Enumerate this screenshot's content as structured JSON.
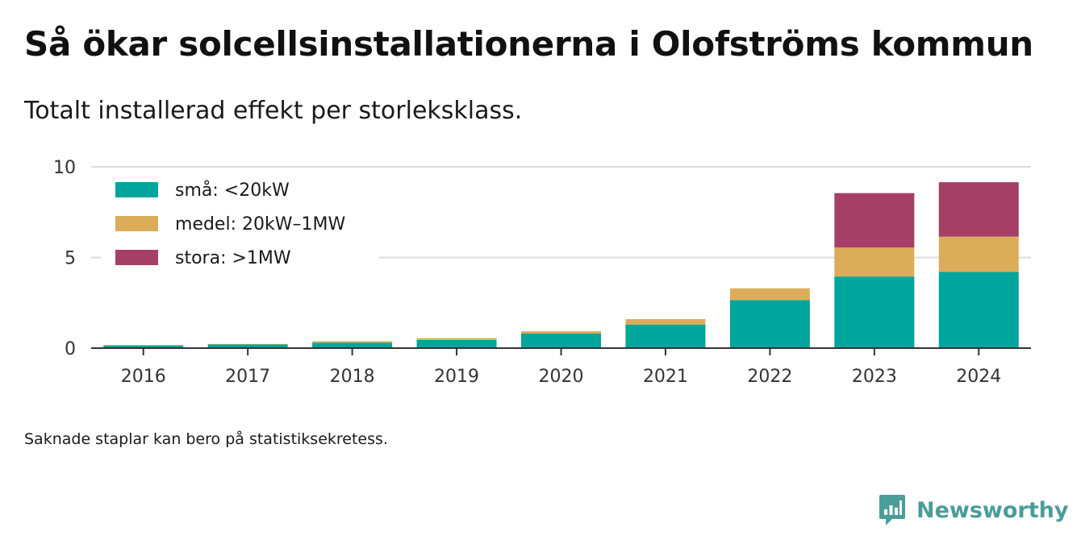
{
  "header": {
    "title": "Så ökar solcellsinstallationerna i Olofströms kommun",
    "subtitle": "Totalt installerad effekt per storleksklass."
  },
  "footnote": "Saknade staplar kan bero på statistiksekretess.",
  "brand": {
    "name": "Newsworthy",
    "icon": "newsworthy-logo-icon",
    "color": "#4a9d98"
  },
  "chart_data": {
    "type": "bar",
    "stacked": true,
    "categories": [
      "2016",
      "2017",
      "2018",
      "2019",
      "2020",
      "2021",
      "2022",
      "2023",
      "2024"
    ],
    "series": [
      {
        "name": "små: <20kW",
        "color": "#00a59b",
        "values": [
          0.15,
          0.2,
          0.3,
          0.45,
          0.8,
          1.3,
          2.65,
          3.95,
          4.2
        ]
      },
      {
        "name": "medel: 20kW–1MW",
        "color": "#dbad5b",
        "values": [
          0.02,
          0.03,
          0.08,
          0.1,
          0.13,
          0.3,
          0.65,
          1.6,
          1.95
        ]
      },
      {
        "name": "stora: >1MW",
        "color": "#a53f66",
        "values": [
          0,
          0,
          0,
          0,
          0,
          0,
          0,
          3.0,
          3.0
        ]
      }
    ],
    "yticks": [
      0,
      5,
      10
    ],
    "ylim": [
      0,
      10
    ],
    "grid": true,
    "legend_position": "top-left"
  }
}
